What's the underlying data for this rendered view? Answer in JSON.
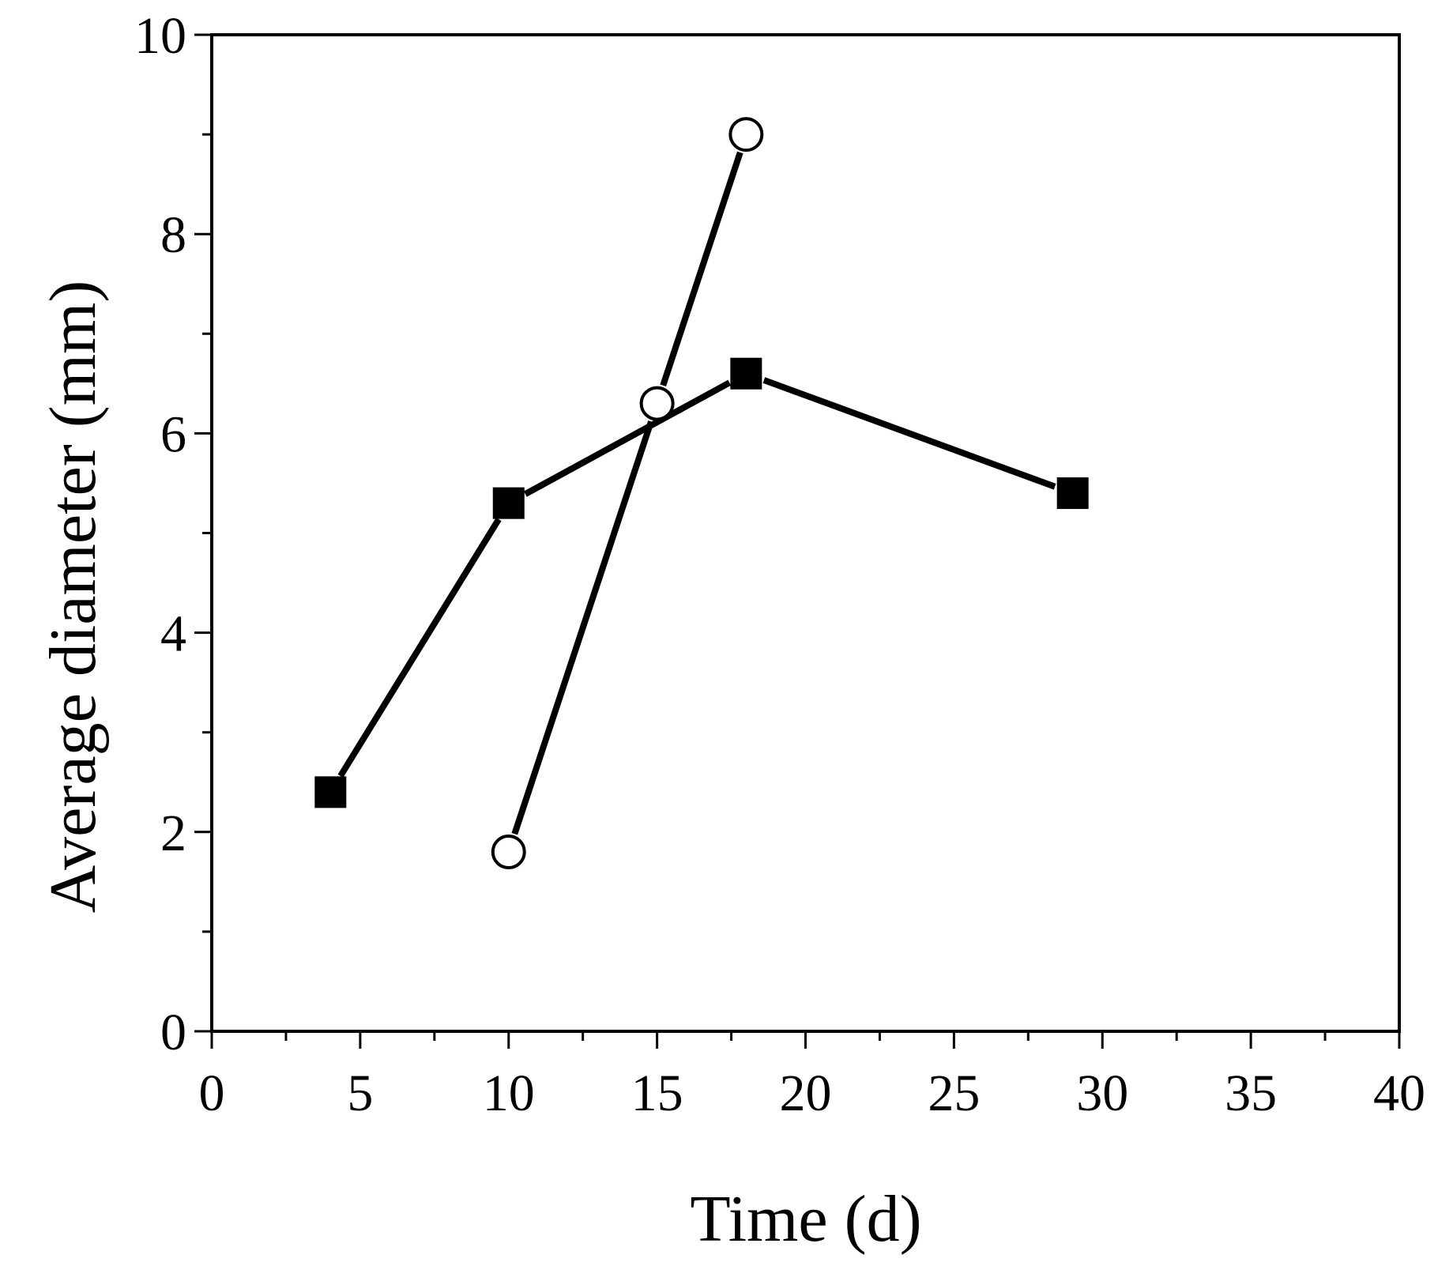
{
  "chart_data": {
    "type": "line",
    "xlabel": "Time (d)",
    "ylabel": "Average diameter (mm)",
    "xlim": [
      0,
      40
    ],
    "ylim": [
      0,
      10
    ],
    "x_ticks": [
      0,
      5,
      10,
      15,
      20,
      25,
      30,
      35,
      40
    ],
    "y_ticks": [
      0,
      2,
      4,
      6,
      8,
      10
    ],
    "grid": false,
    "series": [
      {
        "marker": "filled-square",
        "color": "#000000",
        "x": [
          4,
          10,
          18,
          29
        ],
        "y": [
          2.4,
          5.3,
          6.6,
          5.4
        ]
      },
      {
        "marker": "open-circle",
        "color": "#000000",
        "x": [
          10,
          15,
          18
        ],
        "y": [
          1.8,
          6.3,
          9.0
        ]
      }
    ]
  }
}
